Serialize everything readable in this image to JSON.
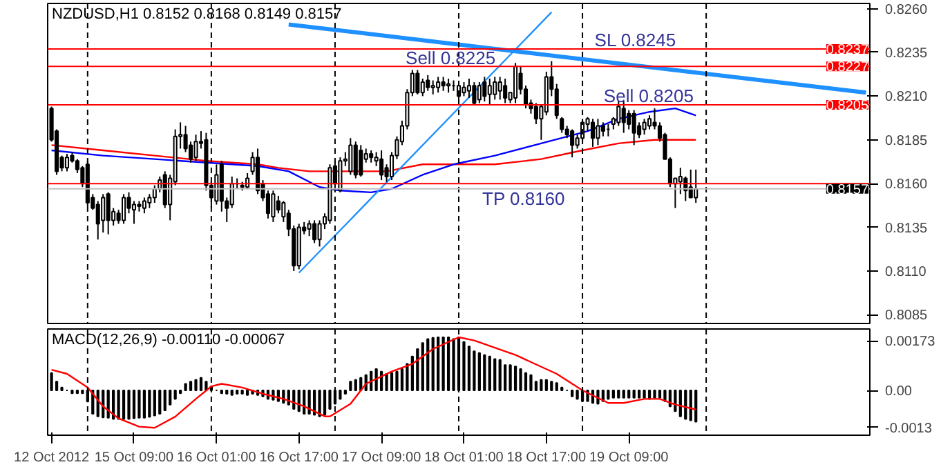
{
  "chart_data": [
    {
      "type": "candlestick",
      "title": "NZDUSD,H1 0.8152 0.8168 0.8149 0.8157",
      "categories": [
        null,
        null,
        null,
        null,
        null,
        null,
        null,
        null,
        null,
        null,
        null,
        null,
        null,
        null,
        null,
        null,
        null,
        null,
        null,
        null,
        null,
        null,
        null,
        null,
        null,
        null,
        null,
        null,
        null,
        null,
        null,
        null,
        null,
        null,
        null,
        null,
        null,
        null,
        null,
        null,
        null,
        null,
        null,
        null,
        null,
        null,
        null,
        null,
        null,
        null,
        null,
        null,
        null,
        null,
        null,
        null,
        null,
        null,
        null,
        null,
        null,
        null,
        null,
        null,
        null,
        null,
        null,
        null,
        null,
        null,
        null,
        null,
        null,
        null,
        null,
        null,
        null,
        null,
        null,
        null,
        null,
        null,
        null,
        null,
        null,
        null,
        null,
        null,
        null,
        null,
        null,
        null,
        null,
        null,
        null,
        null,
        null,
        null,
        null,
        null,
        null,
        null,
        null,
        null,
        null,
        null,
        null,
        null,
        null,
        null,
        null,
        null,
        null,
        null,
        null,
        null,
        null,
        null,
        null,
        null,
        null,
        null,
        null,
        null,
        null,
        null,
        null,
        null,
        null,
        null,
        null,
        null,
        null,
        null,
        null,
        null,
        null,
        null,
        null,
        null,
        null,
        null,
        null,
        null,
        null,
        null,
        null,
        null,
        null,
        null,
        null,
        null,
        null,
        null,
        null,
        null,
        null,
        null,
        null
      ],
      "ohlc": [
        [
          0.8203,
          0.8204,
          0.8184,
          0.8185
        ],
        [
          0.819,
          0.8191,
          0.8165,
          0.8167
        ],
        [
          0.8175,
          0.8176,
          0.8167,
          0.8169
        ],
        [
          0.8169,
          0.8177,
          0.8167,
          0.8175
        ],
        [
          0.8176,
          0.8178,
          0.8172,
          0.8173
        ],
        [
          0.8173,
          0.8174,
          0.8166,
          0.8168
        ],
        [
          0.8169,
          0.817,
          0.8158,
          0.816
        ],
        [
          0.8171,
          0.8173,
          0.8147,
          0.8149
        ],
        [
          0.8152,
          0.8154,
          0.8145,
          0.8146
        ],
        [
          0.8148,
          0.815,
          0.8128,
          0.8137
        ],
        [
          0.8139,
          0.8154,
          0.8132,
          0.8152
        ],
        [
          0.8154,
          0.8155,
          0.8131,
          0.8139
        ],
        [
          0.8139,
          0.8146,
          0.8136,
          0.8144
        ],
        [
          0.8143,
          0.8145,
          0.8137,
          0.8139
        ],
        [
          0.8139,
          0.8154,
          0.8137,
          0.8152
        ],
        [
          0.8152,
          0.8155,
          0.8143,
          0.8146
        ],
        [
          0.8145,
          0.815,
          0.8137,
          0.8148
        ],
        [
          0.8148,
          0.815,
          0.8144,
          0.8147
        ],
        [
          0.8146,
          0.8152,
          0.8143,
          0.815
        ],
        [
          0.8149,
          0.8154,
          0.8146,
          0.8152
        ],
        [
          0.8152,
          0.8159,
          0.8149,
          0.8157
        ],
        [
          0.8157,
          0.8164,
          0.8155,
          0.8162
        ],
        [
          0.8165,
          0.8167,
          0.8146,
          0.8148
        ],
        [
          0.8148,
          0.8165,
          0.8139,
          0.8163
        ],
        [
          0.8161,
          0.8191,
          0.8159,
          0.8187
        ],
        [
          0.8187,
          0.8195,
          0.818,
          0.8188
        ],
        [
          0.8188,
          0.8193,
          0.8178,
          0.818
        ],
        [
          0.8182,
          0.8184,
          0.8172,
          0.8174
        ],
        [
          0.8175,
          0.8188,
          0.8173,
          0.8184
        ],
        [
          0.8184,
          0.819,
          0.818,
          0.8183
        ],
        [
          0.8185,
          0.8189,
          0.8156,
          0.8159
        ],
        [
          0.8159,
          0.8161,
          0.8146,
          0.8152
        ],
        [
          0.815,
          0.8171,
          0.8148,
          0.8165
        ],
        [
          0.8171,
          0.8173,
          0.8144,
          0.815
        ],
        [
          0.815,
          0.8152,
          0.8138,
          0.8146
        ],
        [
          0.8148,
          0.8164,
          0.8146,
          0.816
        ],
        [
          0.816,
          0.8163,
          0.8157,
          0.816
        ],
        [
          0.8159,
          0.8161,
          0.8156,
          0.8158
        ],
        [
          0.8158,
          0.8166,
          0.8157,
          0.8163
        ],
        [
          0.8167,
          0.8178,
          0.8165,
          0.8175
        ],
        [
          0.8175,
          0.818,
          0.8154,
          0.8156
        ],
        [
          0.816,
          0.8162,
          0.815,
          0.8152
        ],
        [
          0.8154,
          0.8156,
          0.814,
          0.8143
        ],
        [
          0.8141,
          0.8156,
          0.8138,
          0.8154
        ],
        [
          0.815,
          0.8153,
          0.8143,
          0.8145
        ],
        [
          0.8141,
          0.815,
          0.8138,
          0.8149
        ],
        [
          0.8143,
          0.8145,
          0.813,
          0.8134
        ],
        [
          0.8134,
          0.8136,
          0.811,
          0.8113
        ],
        [
          0.8113,
          0.8137,
          0.8111,
          0.8135
        ],
        [
          0.8135,
          0.8138,
          0.8131,
          0.8133
        ],
        [
          0.8134,
          0.8139,
          0.813,
          0.8137
        ],
        [
          0.8137,
          0.8139,
          0.8126,
          0.8128
        ],
        [
          0.8128,
          0.8139,
          0.8124,
          0.8137
        ],
        [
          0.8137,
          0.8143,
          0.8134,
          0.8141
        ],
        [
          0.8139,
          0.8171,
          0.8137,
          0.8169
        ],
        [
          0.817,
          0.8173,
          0.8157,
          0.816
        ],
        [
          0.8156,
          0.8175,
          0.8155,
          0.8173
        ],
        [
          0.8173,
          0.8178,
          0.817,
          0.8174
        ],
        [
          0.8167,
          0.8186,
          0.8165,
          0.8182
        ],
        [
          0.8182,
          0.8184,
          0.8163,
          0.8165
        ],
        [
          0.8179,
          0.8182,
          0.8164,
          0.8165
        ],
        [
          0.8174,
          0.818,
          0.8172,
          0.8177
        ],
        [
          0.8177,
          0.8179,
          0.8172,
          0.8175
        ],
        [
          0.8173,
          0.8178,
          0.817,
          0.8175
        ],
        [
          0.8174,
          0.8179,
          0.8162,
          0.8165
        ],
        [
          0.8169,
          0.8171,
          0.8161,
          0.8164
        ],
        [
          0.8164,
          0.8178,
          0.8162,
          0.8176
        ],
        [
          0.8176,
          0.8187,
          0.8174,
          0.8185
        ],
        [
          0.8184,
          0.8196,
          0.8182,
          0.8193
        ],
        [
          0.8193,
          0.8214,
          0.8191,
          0.8212
        ],
        [
          0.8212,
          0.8225,
          0.821,
          0.8223
        ],
        [
          0.8223,
          0.8225,
          0.8211,
          0.8212
        ],
        [
          0.8212,
          0.822,
          0.821,
          0.8218
        ],
        [
          0.8219,
          0.8222,
          0.8213,
          0.8215
        ],
        [
          0.8215,
          0.8219,
          0.8211,
          0.8216
        ],
        [
          0.8215,
          0.8221,
          0.8212,
          0.8218
        ],
        [
          0.8218,
          0.8221,
          0.8213,
          0.8216
        ],
        [
          0.8216,
          0.822,
          0.8212,
          0.8217
        ],
        [
          0.8216,
          0.8219,
          0.8213,
          0.8216
        ],
        [
          0.821,
          0.8218,
          0.8207,
          0.8216
        ],
        [
          0.8212,
          0.8218,
          0.821,
          0.8215
        ],
        [
          0.8213,
          0.822,
          0.8209,
          0.8216
        ],
        [
          0.8216,
          0.8218,
          0.8205,
          0.8206
        ],
        [
          0.8208,
          0.8218,
          0.8206,
          0.8216
        ],
        [
          0.8218,
          0.8221,
          0.8207,
          0.821
        ],
        [
          0.8211,
          0.822,
          0.8205,
          0.8216
        ],
        [
          0.8211,
          0.8221,
          0.8208,
          0.8218
        ],
        [
          0.8213,
          0.8221,
          0.8208,
          0.8218
        ],
        [
          0.8216,
          0.822,
          0.8206,
          0.8209
        ],
        [
          0.8208,
          0.8212,
          0.8206,
          0.8212
        ],
        [
          0.8209,
          0.8229,
          0.8206,
          0.8227
        ],
        [
          0.8223,
          0.8227,
          0.8211,
          0.8214
        ],
        [
          0.8214,
          0.8216,
          0.8203,
          0.8205
        ],
        [
          0.8206,
          0.8208,
          0.82,
          0.8203
        ],
        [
          0.8204,
          0.8206,
          0.8194,
          0.8197
        ],
        [
          0.8197,
          0.8205,
          0.8185,
          0.8204
        ],
        [
          0.8201,
          0.8224,
          0.8199,
          0.8221
        ],
        [
          0.8221,
          0.823,
          0.821,
          0.8214
        ],
        [
          0.8214,
          0.8217,
          0.8197,
          0.8199
        ],
        [
          0.8197,
          0.8198,
          0.8189,
          0.8191
        ],
        [
          0.8191,
          0.8193,
          0.8186,
          0.8188
        ],
        [
          0.819,
          0.8191,
          0.8175,
          0.8182
        ],
        [
          0.8182,
          0.8188,
          0.818,
          0.8186
        ],
        [
          0.8186,
          0.8197,
          0.8184,
          0.8195
        ],
        [
          0.8194,
          0.8198,
          0.819,
          0.8197
        ],
        [
          0.8195,
          0.8197,
          0.8181,
          0.8186
        ],
        [
          0.8186,
          0.8197,
          0.8182,
          0.8193
        ],
        [
          0.8193,
          0.8195,
          0.8187,
          0.819
        ],
        [
          0.8191,
          0.8194,
          0.8187,
          0.8191
        ],
        [
          0.8194,
          0.8198,
          0.8191,
          0.8197
        ],
        [
          0.8195,
          0.8207,
          0.8193,
          0.8204
        ],
        [
          0.8203,
          0.8207,
          0.8189,
          0.8195
        ],
        [
          0.82,
          0.8202,
          0.8191,
          0.8194
        ],
        [
          0.82,
          0.8202,
          0.8182,
          0.8189
        ],
        [
          0.8193,
          0.8195,
          0.8186,
          0.8188
        ],
        [
          0.8191,
          0.8197,
          0.8188,
          0.8195
        ],
        [
          0.8193,
          0.8199,
          0.8191,
          0.8197
        ],
        [
          0.8195,
          0.8203,
          0.8191,
          0.8193
        ],
        [
          0.8193,
          0.8195,
          0.8184,
          0.8186
        ],
        [
          0.8188,
          0.8189,
          0.8174,
          0.8174
        ],
        [
          0.8174,
          0.8175,
          0.8158,
          0.816
        ],
        [
          0.816,
          0.8163,
          0.8146,
          0.8163
        ],
        [
          0.8161,
          0.8169,
          0.8154,
          0.8164
        ],
        [
          0.8163,
          0.8164,
          0.815,
          0.8156
        ],
        [
          0.8158,
          0.8168,
          0.8152,
          0.8152
        ],
        [
          0.8152,
          0.8168,
          0.8149,
          0.8157
        ],
        null,
        null,
        null,
        null,
        null,
        null,
        null,
        null,
        null,
        null,
        null,
        null,
        null,
        null,
        null,
        null,
        null,
        null,
        null,
        null,
        null,
        null,
        null,
        null,
        null,
        null,
        null,
        null,
        null,
        null,
        null,
        null,
        null
      ],
      "series": [
        {
          "type": "line",
          "color": "#ff0000",
          "values": [
            0.8182,
            null,
            null,
            null,
            null,
            null,
            null,
            null,
            null,
            null,
            0.8179,
            null,
            null,
            null,
            null,
            null,
            null,
            null,
            null,
            null,
            0.8176,
            null,
            null,
            null,
            null,
            null,
            null,
            null,
            null,
            null,
            0.8173,
            null,
            null,
            null,
            null,
            null,
            null,
            null,
            null,
            null,
            0.8171,
            null,
            null,
            null,
            0.8169,
            null,
            null,
            null,
            null,
            null,
            0.8167,
            null,
            null,
            null,
            null,
            null,
            0.8167,
            null,
            null,
            null,
            null,
            null,
            null,
            null,
            null,
            0.8167,
            null,
            null,
            null,
            null,
            null,
            null,
            0.8171,
            null,
            null,
            null,
            null,
            null,
            null,
            null,
            0.8171,
            null,
            null,
            null,
            null,
            null,
            0.8171,
            null,
            null,
            null,
            null,
            null,
            null,
            null,
            null,
            0.8174,
            null,
            null,
            null,
            null,
            null,
            null,
            null,
            0.8179,
            null,
            null,
            null,
            null,
            null,
            null,
            0.8183,
            null,
            null,
            null,
            null,
            null,
            null,
            0.8185,
            null,
            null,
            null,
            null,
            null,
            null,
            null,
            0.8185,
            null,
            null,
            null,
            null,
            null,
            null,
            null,
            null,
            null,
            null,
            null,
            null,
            null,
            null,
            null,
            null,
            null,
            null,
            null,
            null,
            null,
            null,
            null,
            null,
            null,
            null,
            null,
            null,
            null,
            null,
            null,
            null,
            null
          ]
        },
        {
          "type": "line",
          "color": "#0000ff",
          "values": [
            0.8179,
            null,
            null,
            null,
            null,
            null,
            null,
            null,
            null,
            null,
            0.8176,
            null,
            null,
            null,
            null,
            null,
            null,
            null,
            null,
            null,
            0.8174,
            null,
            null,
            null,
            null,
            null,
            null,
            null,
            null,
            null,
            0.8172,
            null,
            null,
            null,
            null,
            null,
            null,
            null,
            null,
            null,
            0.817,
            null,
            null,
            null,
            null,
            null,
            0.8167,
            null,
            null,
            null,
            null,
            null,
            0.8158,
            null,
            null,
            null,
            0.8156,
            null,
            null,
            null,
            null,
            null,
            0.8155,
            null,
            null,
            null,
            0.8157,
            null,
            null,
            null,
            null,
            null,
            0.8165,
            null,
            null,
            null,
            null,
            null,
            0.8171,
            null,
            null,
            null,
            null,
            null,
            null,
            null,
            0.8176,
            null,
            null,
            null,
            null,
            null,
            null,
            null,
            null,
            0.8183,
            null,
            null,
            null,
            null,
            null,
            null,
            null,
            null,
            0.819,
            null,
            null,
            null,
            null,
            null,
            0.8197,
            null,
            null,
            null,
            null,
            null,
            0.8201,
            null,
            null,
            null,
            null,
            0.8203,
            null,
            null,
            null,
            0.8199,
            null,
            null,
            null,
            null,
            null,
            null,
            null,
            null,
            null,
            null,
            null,
            null,
            null,
            null,
            null,
            null,
            null,
            null,
            null,
            null,
            null,
            null,
            null,
            null,
            null,
            null,
            null,
            null,
            null,
            null,
            null,
            null,
            null
          ]
        },
        {
          "type": "line",
          "color": "#1e90ff",
          "values": [
            null,
            null,
            null,
            null,
            null,
            null,
            null,
            null,
            null,
            null,
            null,
            null,
            null,
            null,
            null,
            null,
            null,
            null,
            null,
            null,
            null,
            null,
            null,
            null,
            null,
            null,
            null,
            null,
            null,
            null,
            null,
            null,
            null,
            null,
            null,
            null,
            null,
            null,
            null,
            null,
            null,
            null,
            null,
            null,
            null,
            null,
            null,
            null,
            0.8109,
            null,
            null,
            null,
            null,
            null,
            null,
            null,
            null,
            null,
            null,
            null,
            null,
            null,
            null,
            null,
            null,
            null,
            null,
            null,
            null,
            null,
            null,
            null,
            null,
            null,
            null,
            null,
            null,
            null,
            null,
            null,
            null,
            null,
            null,
            null,
            null,
            null,
            null,
            null,
            null,
            null,
            null,
            null,
            null,
            null,
            null,
            null,
            null,
            0.8258,
            null,
            null,
            null,
            null,
            null,
            null,
            null,
            null,
            null,
            null,
            null,
            null,
            null,
            null,
            null,
            null,
            null,
            null,
            null,
            null,
            null,
            null,
            null,
            null,
            null,
            null,
            null,
            null,
            null,
            null,
            null,
            null,
            null,
            null,
            null,
            null,
            null,
            null,
            null,
            null,
            null,
            null,
            null,
            null,
            null,
            null,
            null,
            null,
            null,
            null,
            null,
            null,
            null,
            null,
            null,
            null,
            null,
            null,
            null,
            null,
            null
          ]
        },
        {
          "type": "line",
          "color": "#1e90ff",
          "values": [
            null,
            null,
            null,
            null,
            null,
            null,
            null,
            null,
            null,
            null,
            null,
            null,
            null,
            null,
            null,
            null,
            null,
            null,
            null,
            null,
            null,
            null,
            null,
            null,
            null,
            null,
            null,
            null,
            null,
            null,
            null,
            null,
            null,
            null,
            null,
            null,
            null,
            null,
            null,
            null,
            null,
            null,
            null,
            null,
            null,
            null,
            0.8251,
            null,
            null,
            null,
            null,
            null,
            null,
            null,
            null,
            null,
            null,
            null,
            null,
            null,
            null,
            null,
            null,
            null,
            null,
            null,
            null,
            null,
            null,
            null,
            null,
            null,
            null,
            null,
            null,
            null,
            null,
            null,
            null,
            null,
            null,
            null,
            null,
            null,
            null,
            null,
            null,
            null,
            null,
            null,
            null,
            null,
            null,
            null,
            null,
            null,
            null,
            null,
            null,
            null,
            null,
            null,
            null,
            null,
            null,
            null,
            null,
            null,
            null,
            null,
            null,
            null,
            null,
            null,
            null,
            null,
            null,
            null,
            null,
            null,
            null,
            null,
            null,
            null,
            null,
            null,
            null,
            null,
            null,
            null,
            null,
            null,
            null,
            null,
            null,
            null,
            null,
            null,
            null,
            null,
            null,
            null,
            null,
            null,
            null,
            null,
            null,
            null,
            null,
            null,
            null,
            null,
            null,
            null,
            null,
            null,
            null,
            null,
            0.8212
          ]
        }
      ],
      "ylim": [
        0.808,
        0.8263
      ],
      "yticks": [
        {
          "value": 0.826,
          "label": "0.8260"
        },
        {
          "value": 0.8235,
          "label": "0.8235"
        },
        {
          "value": 0.821,
          "label": "0.8210"
        },
        {
          "value": 0.8185,
          "label": "0.8185"
        },
        {
          "value": 0.816,
          "label": "0.8160"
        },
        {
          "value": 0.8135,
          "label": "0.8135"
        },
        {
          "value": 0.811,
          "label": "0.8110"
        },
        {
          "value": 0.8085,
          "label": "0.8085"
        }
      ],
      "tick_labels": "y",
      "ref_lines": [
        {
          "axis": "y",
          "value": 0.8237,
          "label": "0.8237",
          "color": "#ff0000"
        },
        {
          "axis": "y",
          "value": 0.8227,
          "label": "0.8227",
          "color": "#ff0000"
        },
        {
          "axis": "y",
          "value": 0.8205,
          "label": "0.8205",
          "color": "#ff0000"
        },
        {
          "axis": "y",
          "value": 0.816,
          "label": null,
          "color": "#ff0000"
        },
        {
          "axis": "y",
          "value": 0.8157,
          "label": "0.8157",
          "color": "#c0c0c0"
        }
      ],
      "annotations": [
        "Sell 0.8225",
        "SL 0.8245",
        "Sell 0.8205",
        "TP 0.8160"
      ],
      "grid": false
    },
    {
      "type": "bar",
      "title": "MACD(12,26,9) -0.00110 -0.00067",
      "categories": [
        "12 Oct 2012",
        null,
        null,
        null,
        null,
        null,
        null,
        null,
        null,
        null,
        null,
        null,
        null,
        null,
        null,
        null,
        "15 Oct 09:00",
        null,
        null,
        null,
        null,
        null,
        null,
        null,
        null,
        null,
        null,
        null,
        null,
        null,
        null,
        null,
        "16 Oct 01:00",
        null,
        null,
        null,
        null,
        null,
        null,
        null,
        null,
        null,
        null,
        null,
        null,
        null,
        null,
        null,
        "16 Oct 17:00",
        null,
        null,
        null,
        null,
        null,
        null,
        null,
        null,
        null,
        null,
        null,
        null,
        null,
        null,
        null,
        "17 Oct 09:00",
        null,
        null,
        null,
        null,
        null,
        null,
        null,
        null,
        null,
        null,
        null,
        null,
        null,
        null,
        null,
        "18 Oct 01:00",
        null,
        null,
        null,
        null,
        null,
        null,
        null,
        null,
        null,
        null,
        null,
        null,
        null,
        null,
        null,
        "18 Oct 17:00",
        null,
        null,
        null,
        null,
        null,
        null,
        null,
        null,
        null,
        null,
        null,
        null,
        null,
        null,
        null,
        "19 Oct 09:00",
        null,
        null,
        null,
        null,
        null,
        null,
        null,
        null,
        null,
        null,
        null,
        null,
        null,
        null,
        null,
        null,
        null,
        null,
        null,
        null,
        null,
        null,
        null,
        null,
        null,
        null,
        null,
        null,
        null,
        null,
        null,
        null,
        null,
        null,
        null,
        null,
        null,
        null,
        null,
        null,
        null,
        null,
        null,
        null,
        null,
        null
      ],
      "series": [
        {
          "color": "#000000",
          "values": [
            0.00061,
            0.00031,
            0.0001,
            0.0,
            -0.0001,
            -0.0001,
            -0.0001,
            -0.00039,
            -0.00082,
            -0.00091,
            -0.00095,
            -0.00096,
            -0.001,
            -0.001,
            -0.001,
            -0.001,
            -0.00098,
            -0.00096,
            -0.00096,
            -0.00093,
            -0.00088,
            -0.00082,
            -0.0007,
            -0.0005,
            -0.0003,
            -0.0001,
            0.00023,
            0.00031,
            0.00037,
            0.00044,
            0.00031,
            0.00014,
            0.0,
            -0.0001,
            -0.00012,
            -0.00016,
            -0.00012,
            -0.00012,
            -0.00016,
            -0.00012,
            -0.00016,
            -0.00021,
            -0.0003,
            -0.00033,
            -0.00038,
            -0.00044,
            -0.0005,
            -0.00065,
            -0.00073,
            -0.00082,
            -0.00082,
            -0.00086,
            -0.00091,
            -0.00086,
            -0.00065,
            -0.00047,
            -0.0003,
            -0.00012,
            0.00031,
            0.00037,
            0.00044,
            0.00054,
            0.00066,
            0.00075,
            0.00066,
            0.00058,
            0.00061,
            0.00066,
            0.00075,
            0.00093,
            0.00119,
            0.00145,
            0.00166,
            0.0018,
            0.00184,
            0.00186,
            0.00186,
            0.00186,
            0.0018,
            0.00186,
            0.0017,
            0.00154,
            0.00137,
            0.00131,
            0.00124,
            0.00119,
            0.0011,
            0.00107,
            0.00089,
            0.00089,
            0.00084,
            0.00075,
            0.00061,
            0.00054,
            0.00031,
            0.00037,
            0.00037,
            0.00031,
            0.00026,
            0.0001,
            0.0,
            -0.00021,
            -0.0003,
            -0.00038,
            -0.00038,
            -0.00044,
            -0.00047,
            -0.00038,
            -0.0003,
            -0.00026,
            -0.00026,
            -0.00026,
            -0.00026,
            -0.00026,
            -0.00026,
            -0.00026,
            -0.0003,
            -0.00026,
            -0.00026,
            -0.00038,
            -0.00056,
            -0.00073,
            -0.00091,
            -0.001,
            -0.00105,
            -0.0011,
            null,
            null,
            null,
            null,
            null,
            null,
            null,
            null,
            null,
            null,
            null,
            null,
            null,
            null,
            null,
            null,
            null,
            null,
            null,
            null,
            null,
            null,
            null,
            null,
            null,
            null,
            null,
            null,
            null,
            null,
            null,
            null,
            null
          ]
        },
        {
          "type": "line",
          "color": "#ff0000",
          "values": [
            0.00072,
            null,
            null,
            0.00058,
            null,
            null,
            null,
            0.0001,
            null,
            null,
            -0.00056,
            null,
            null,
            -0.00098,
            null,
            null,
            null,
            -0.00127,
            null,
            null,
            -0.00131,
            null,
            null,
            null,
            -0.00092,
            null,
            null,
            null,
            -0.0003,
            null,
            null,
            0.00014,
            null,
            0.00023,
            null,
            null,
            null,
            0.0001,
            null,
            null,
            null,
            -0.00012,
            null,
            null,
            null,
            -0.0003,
            null,
            null,
            null,
            -0.00056,
            null,
            null,
            null,
            -0.00091,
            -0.00091,
            null,
            null,
            null,
            -0.00047,
            null,
            null,
            0.00023,
            null,
            null,
            null,
            null,
            0.00066,
            null,
            null,
            null,
            0.00093,
            null,
            null,
            null,
            0.00145,
            null,
            null,
            null,
            null,
            0.00186,
            null,
            null,
            0.00175,
            null,
            null,
            null,
            null,
            null,
            null,
            null,
            0.00124,
            null,
            null,
            null,
            null,
            null,
            null,
            null,
            0.00058,
            null,
            null,
            null,
            null,
            0.0,
            null,
            null,
            null,
            null,
            -0.00044,
            null,
            null,
            -0.00044,
            null,
            null,
            null,
            -0.0003,
            null,
            null,
            -0.0003,
            null,
            null,
            -0.0005,
            null,
            null,
            null,
            -0.00067,
            null,
            null,
            null,
            null,
            null,
            null,
            null,
            null,
            null,
            null,
            null,
            null,
            null,
            null,
            null,
            null,
            null,
            null,
            null,
            null,
            null,
            null,
            null,
            null,
            null,
            null,
            null,
            null,
            null,
            null,
            null,
            null,
            null
          ]
        }
      ],
      "ylim": [
        -0.00157,
        0.00215
      ],
      "yticks": [
        {
          "value": 0.00173,
          "label": "0.00173"
        },
        {
          "value": 0,
          "label": "0.00"
        },
        {
          "value": -0.0013,
          "label": "-0.0013"
        }
      ],
      "grid": false
    }
  ]
}
